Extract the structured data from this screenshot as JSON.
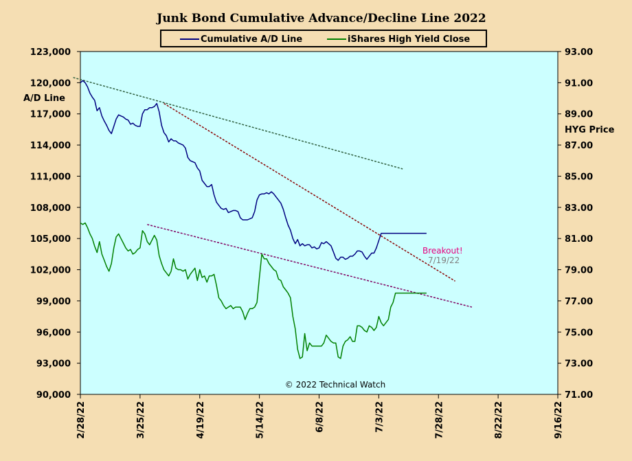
{
  "chart_data": {
    "type": "line",
    "title": "Junk Bond Cumulative  Advance/Decline  Line 2022",
    "ylabel_left": "A/D Line",
    "ylabel_right": "HYG Price",
    "copyright": "© 2022 Technical Watch",
    "colors": {
      "plot_bg": "#CCFFFF",
      "page_bg": "#F5DEB3",
      "ad_line": "#000080",
      "hyg_line": "#008000",
      "trend_dark_green": "#2F5F3F",
      "trend_dark_red": "#8B0000",
      "trend_purple": "#800060"
    },
    "x_axis": {
      "start": "2/28/22",
      "end": "9/16/22",
      "tick_labels": [
        "2/28/22",
        "3/25/22",
        "4/19/22",
        "5/14/22",
        "6/8/22",
        "7/3/22",
        "7/28/22",
        "8/22/22",
        "9/16/22"
      ],
      "tick_days": [
        0,
        25,
        50,
        75,
        100,
        125,
        150,
        175,
        200
      ]
    },
    "y_left": {
      "min": 90000,
      "max": 123000,
      "tick_labels": [
        "90,000",
        "93,000",
        "96,000",
        "99,000",
        "102,000",
        "105,000",
        "108,000",
        "111,000",
        "114,000",
        "117,000",
        "120,000",
        "123,000"
      ],
      "tick_values": [
        90000,
        93000,
        96000,
        99000,
        102000,
        105000,
        108000,
        111000,
        114000,
        117000,
        120000,
        123000
      ]
    },
    "y_right": {
      "min": 71,
      "max": 93,
      "tick_labels": [
        "71.00",
        "73.00",
        "75.00",
        "77.00",
        "79.00",
        "81.00",
        "83.00",
        "85.00",
        "87.00",
        "89.00",
        "91.00",
        "93.00"
      ],
      "tick_values": [
        71,
        73,
        75,
        77,
        79,
        81,
        83,
        85,
        87,
        89,
        91,
        93
      ]
    },
    "legend": {
      "placement": "top-center",
      "entries": [
        "Cumulative A/D Line",
        "iShares High Yield Close"
      ]
    },
    "series": [
      {
        "name": "Cumulative A/D Line",
        "axis": "left",
        "x": [
          0,
          1,
          2,
          3,
          4,
          5,
          6,
          7,
          8,
          9,
          10,
          11,
          12,
          13,
          14,
          15,
          16,
          17,
          18,
          19,
          20,
          21,
          22,
          23,
          24,
          25,
          26,
          27,
          28,
          29,
          30,
          31,
          32,
          33,
          34,
          35,
          36,
          37,
          38,
          39,
          40,
          41,
          42,
          43,
          44,
          45,
          46,
          47,
          48,
          49,
          50,
          51,
          52,
          53,
          54,
          55,
          56,
          57,
          58,
          59,
          60,
          61,
          62,
          63,
          64,
          65,
          66,
          67,
          68,
          69,
          70,
          71,
          72,
          73,
          74,
          75,
          76,
          77,
          78,
          79,
          80,
          81,
          82,
          83,
          84,
          85,
          86,
          87,
          88,
          89,
          90,
          91,
          92,
          93,
          94,
          95,
          96,
          97,
          98,
          99,
          100,
          101,
          102,
          103,
          104,
          105,
          106,
          107,
          108,
          109,
          110,
          111,
          112,
          113,
          114,
          115,
          116,
          117,
          118,
          119,
          120,
          121,
          122,
          123,
          124,
          125,
          126,
          127,
          128,
          129,
          130,
          131,
          132,
          133,
          134,
          135,
          136,
          137,
          138,
          139,
          140,
          141,
          142,
          143,
          144,
          145
        ],
        "values": [
          120000,
          120200,
          120000,
          119600,
          119000,
          118600,
          118300,
          117300,
          117600,
          116800,
          116300,
          115900,
          115400,
          115100,
          115800,
          116500,
          116900,
          116800,
          116700,
          116500,
          116400,
          116000,
          116100,
          115900,
          115800,
          115800,
          117000,
          117400,
          117400,
          117600,
          117600,
          117700,
          118000,
          117200,
          115900,
          115200,
          114900,
          114300,
          114600,
          114400,
          114400,
          114200,
          114100,
          114000,
          113700,
          112800,
          112500,
          112400,
          112300,
          111800,
          111500,
          110600,
          110300,
          110000,
          110000,
          110200,
          109200,
          108500,
          108200,
          107900,
          107800,
          107900,
          107500,
          107600,
          107700,
          107700,
          107600,
          107000,
          106800,
          106800,
          106800,
          106900,
          107000,
          107600,
          108700,
          109200,
          109300,
          109300,
          109400,
          109300,
          109500,
          109300,
          109000,
          108700,
          108400,
          107800,
          107000,
          106300,
          105800,
          105000,
          104500,
          104900,
          104300,
          104500,
          104300,
          104400,
          104400,
          104100,
          104200,
          104000,
          104100,
          104600,
          104500,
          104700,
          104500,
          104300,
          103700,
          103100,
          102900,
          103200,
          103200,
          103000,
          103100,
          103300,
          103300,
          103500,
          103800,
          103800,
          103700,
          103300,
          103000,
          103300,
          103600,
          103600,
          104100,
          104800,
          105500,
          105500,
          105500,
          105500,
          105500,
          105500,
          105500,
          105500,
          105500,
          105500,
          105500,
          105500,
          105500,
          105500,
          105500,
          105500,
          105500,
          105500,
          105500,
          105500
        ]
      },
      {
        "name": "iShares High Yield Close",
        "axis": "right",
        "x": [
          0,
          1,
          2,
          3,
          4,
          5,
          6,
          7,
          8,
          9,
          10,
          11,
          12,
          13,
          14,
          15,
          16,
          17,
          18,
          19,
          20,
          21,
          22,
          23,
          24,
          25,
          26,
          27,
          28,
          29,
          30,
          31,
          32,
          33,
          34,
          35,
          36,
          37,
          38,
          39,
          40,
          41,
          42,
          43,
          44,
          45,
          46,
          47,
          48,
          49,
          50,
          51,
          52,
          53,
          54,
          55,
          56,
          57,
          58,
          59,
          60,
          61,
          62,
          63,
          64,
          65,
          66,
          67,
          68,
          69,
          70,
          71,
          72,
          73,
          74,
          75,
          76,
          77,
          78,
          79,
          80,
          81,
          82,
          83,
          84,
          85,
          86,
          87,
          88,
          89,
          90,
          91,
          92,
          93,
          94,
          95,
          96,
          97,
          98,
          99,
          100,
          101,
          102,
          103,
          104,
          105,
          106,
          107,
          108,
          109,
          110,
          111,
          112,
          113,
          114,
          115,
          116,
          117,
          118,
          119,
          120,
          121,
          122,
          123,
          124,
          125,
          126,
          127,
          128,
          129,
          130,
          131,
          132,
          133,
          134,
          135,
          136,
          137,
          138,
          139,
          140,
          141,
          142,
          143,
          144,
          145
        ],
        "values": [
          82.0,
          81.9,
          82.0,
          81.7,
          81.3,
          81.0,
          80.5,
          80.1,
          80.8,
          80.0,
          79.6,
          79.2,
          78.9,
          79.4,
          80.4,
          81.1,
          81.3,
          81.0,
          80.7,
          80.4,
          80.2,
          80.3,
          80.0,
          80.1,
          80.3,
          80.4,
          81.5,
          81.3,
          80.8,
          80.6,
          80.9,
          81.2,
          80.9,
          79.9,
          79.4,
          79.0,
          78.8,
          78.6,
          78.9,
          79.7,
          79.1,
          79.0,
          79.0,
          78.9,
          79.0,
          78.4,
          78.7,
          78.9,
          79.1,
          78.3,
          79.0,
          78.5,
          78.6,
          78.2,
          78.6,
          78.6,
          78.7,
          78.0,
          77.2,
          77.0,
          76.7,
          76.5,
          76.6,
          76.7,
          76.5,
          76.6,
          76.6,
          76.6,
          76.3,
          75.8,
          76.2,
          76.5,
          76.5,
          76.6,
          76.9,
          78.5,
          80.0,
          79.7,
          79.7,
          79.4,
          79.2,
          79.0,
          78.9,
          78.4,
          78.3,
          77.9,
          77.7,
          77.5,
          77.2,
          76.0,
          75.2,
          73.9,
          73.3,
          73.4,
          74.9,
          73.8,
          74.3,
          74.1,
          74.1,
          74.1,
          74.1,
          74.1,
          74.3,
          74.8,
          74.6,
          74.4,
          74.3,
          74.3,
          73.4,
          73.3,
          74.1,
          74.4,
          74.5,
          74.7,
          74.4,
          74.4,
          75.4,
          75.4,
          75.3,
          75.1,
          75.0,
          75.4,
          75.3,
          75.1,
          75.3,
          76.0,
          75.6,
          75.4,
          75.6,
          75.8,
          76.6,
          76.9,
          77.5,
          77.5,
          77.5,
          77.5,
          77.5,
          77.5,
          77.5,
          77.5,
          77.5,
          77.5,
          77.5,
          77.5,
          77.5,
          77.5
        ]
      }
    ],
    "trendlines": [
      {
        "color_key": "trend_dark_green",
        "axis": "left",
        "x": [
          -3,
          135
        ],
        "y": [
          120500,
          111700
        ]
      },
      {
        "color_key": "trend_dark_red",
        "axis": "left",
        "x": [
          35,
          157
        ],
        "y": [
          118000,
          100900
        ]
      },
      {
        "color_key": "trend_purple",
        "axis": "right",
        "x": [
          28,
          164
        ],
        "y": [
          81.9,
          76.6
        ]
      }
    ],
    "annotations": [
      {
        "text": "Breakout!",
        "style": "magenta"
      },
      {
        "text": "7/19/22",
        "style": "gray"
      }
    ]
  }
}
